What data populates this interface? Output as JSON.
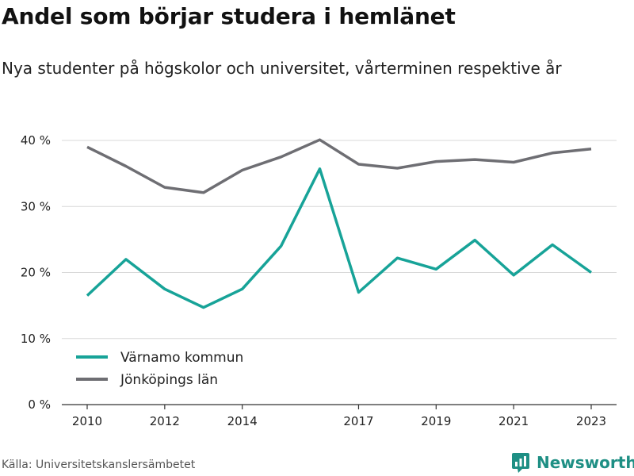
{
  "title": "Andel som börjar studera i hemlänet",
  "subtitle": "Nya studenter på högskolor och universitet, vårterminen respektive år",
  "source": "Källa: Universitetskanslersämbetet",
  "brand": "Newsworthy",
  "colors": {
    "teal": "#17a398",
    "gray": "#6e6e73",
    "grid": "#d9d9d9",
    "axis": "#333333",
    "brand": "#1e8f84"
  },
  "chart_data": {
    "type": "line",
    "x": [
      2010,
      2011,
      2012,
      2013,
      2014,
      2015,
      2016,
      2017,
      2018,
      2019,
      2020,
      2021,
      2022,
      2023
    ],
    "x_ticks": [
      2010,
      2012,
      2014,
      2017,
      2019,
      2021,
      2023
    ],
    "y_ticks": [
      0,
      10,
      20,
      30,
      40
    ],
    "y_tick_labels": [
      "0 %",
      "10 %",
      "20 %",
      "30 %",
      "40 %"
    ],
    "ylim": [
      0,
      40
    ],
    "y_unit": "%",
    "grid": true,
    "legend_position": "bottom-left",
    "series": [
      {
        "name": "Värnamo kommun",
        "color": "#17a398",
        "values": [
          16.5,
          22.0,
          17.5,
          14.7,
          17.5,
          24.0,
          35.7,
          17.0,
          22.2,
          20.5,
          24.9,
          19.6,
          24.2,
          20.0
        ]
      },
      {
        "name": "Jönköpings län",
        "color": "#6e6e73",
        "values": [
          39.0,
          36.1,
          32.9,
          32.1,
          35.5,
          37.5,
          40.1,
          36.4,
          35.8,
          36.8,
          37.1,
          36.7,
          38.1,
          38.7
        ]
      }
    ]
  }
}
